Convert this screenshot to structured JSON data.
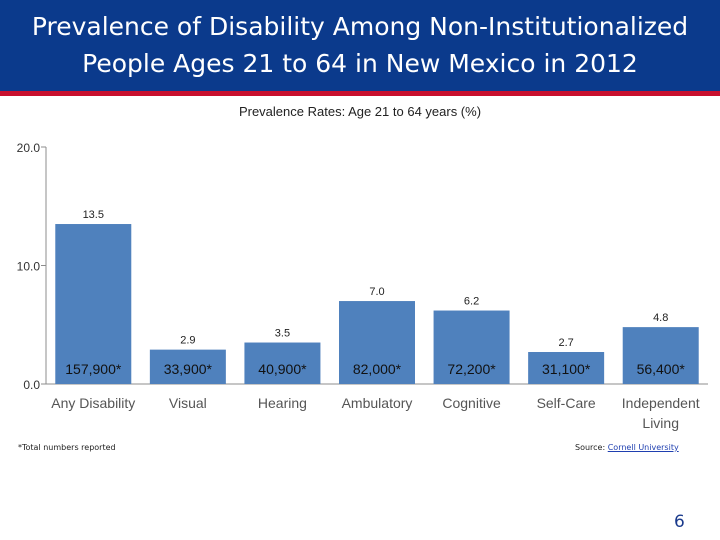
{
  "slide": {
    "title": "Prevalence of Disability Among Non-Institutionalized\nPeople Ages 21 to 64 in New Mexico in 2012",
    "footnote": "*Total numbers reported",
    "source_label": "Source:",
    "source_link": "Cornell University",
    "page_number": "6"
  },
  "colors": {
    "header_bg": "#0b3a8c",
    "header_rule": "#c8102e",
    "bar": "#4f81bd"
  },
  "chart_data": {
    "type": "bar",
    "title": "Prevalence Rates: Age 21 to 64 years (%)",
    "categories": [
      "Any Disability",
      "Visual",
      "Hearing",
      "Ambulatory",
      "Cognitive",
      "Self-Care",
      "Independent Living"
    ],
    "values": [
      13.5,
      2.9,
      3.5,
      7.0,
      6.2,
      2.7,
      4.8
    ],
    "value_labels": [
      "13.5",
      "2.9",
      "3.5",
      "7.0",
      "6.2",
      "2.7",
      "4.8"
    ],
    "totals": [
      "157,900*",
      "33,900*",
      "40,900*",
      "82,000*",
      "72,200*",
      "31,100*",
      "56,400*"
    ],
    "ylim": [
      0,
      20
    ],
    "yticks": [
      "0.0",
      "10.0",
      "20.0"
    ],
    "grid": false,
    "legend": "none"
  }
}
